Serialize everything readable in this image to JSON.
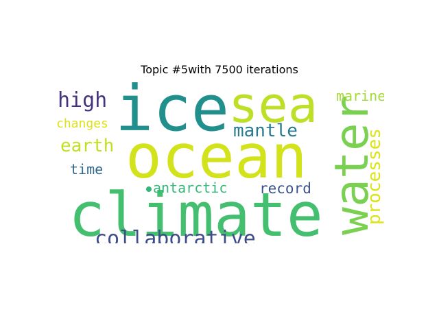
{
  "title": "Topic #5with 7500 iterations",
  "words": [
    {
      "text": "ice",
      "color": "#21908d"
    },
    {
      "text": "sea",
      "color": "#bddf26"
    },
    {
      "text": "ocean",
      "color": "#d2e21b"
    },
    {
      "text": "water",
      "color": "#7ad151"
    },
    {
      "text": "climate",
      "color": "#44bf70"
    },
    {
      "text": "high",
      "color": "#46337e"
    },
    {
      "text": "mantle",
      "color": "#287c8e"
    },
    {
      "text": "earth",
      "color": "#c2df23"
    },
    {
      "text": "changes",
      "color": "#dde318"
    },
    {
      "text": "time",
      "color": "#31688e"
    },
    {
      "text": "antarctic",
      "color": "#35b779"
    },
    {
      "text": "record",
      "color": "#3b528b"
    },
    {
      "text": "collaborative",
      "color": "#3e4c8a"
    },
    {
      "text": "processes",
      "color": "#dce319"
    },
    {
      "text": "marine",
      "color": "#a5db36"
    }
  ],
  "dot_color": "#35b779"
}
